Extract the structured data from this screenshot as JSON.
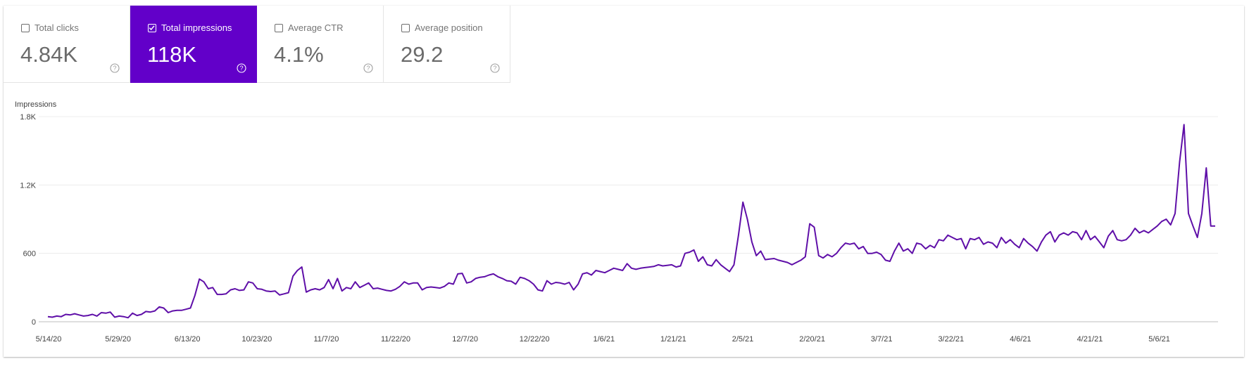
{
  "metrics": [
    {
      "label": "Total clicks",
      "value": "4.84K",
      "checked": false,
      "icon": "help-circle-icon"
    },
    {
      "label": "Total impressions",
      "value": "118K",
      "checked": true,
      "icon": "help-circle-icon"
    },
    {
      "label": "Average CTR",
      "value": "4.1%",
      "checked": false,
      "icon": "help-circle-icon"
    },
    {
      "label": "Average position",
      "value": "29.2",
      "checked": false,
      "icon": "help-circle-icon"
    }
  ],
  "colors": {
    "accent": "#6200c9",
    "line": "#5f0fa8",
    "grid": "#ececec"
  },
  "chart_data": {
    "type": "line",
    "title": "",
    "ylabel": "Impressions",
    "xlabel": "",
    "ylim": [
      0,
      1800
    ],
    "yticks": [
      0,
      600,
      1200,
      1800
    ],
    "ytick_labels": [
      "0",
      "600",
      "1.2K",
      "1.8K"
    ],
    "xtick_labels": [
      "5/14/20",
      "5/29/20",
      "6/13/20",
      "10/23/20",
      "11/7/20",
      "11/22/20",
      "12/7/20",
      "12/22/20",
      "1/6/21",
      "1/21/21",
      "2/5/21",
      "2/20/21",
      "3/7/21",
      "3/22/21",
      "4/6/21",
      "4/21/21",
      "5/6/21"
    ],
    "grid": true,
    "legend": "none",
    "series": [
      {
        "name": "",
        "values": [
          45,
          40,
          50,
          45,
          65,
          60,
          70,
          60,
          50,
          55,
          65,
          50,
          80,
          75,
          85,
          40,
          50,
          45,
          35,
          75,
          55,
          65,
          90,
          85,
          95,
          130,
          120,
          80,
          95,
          100,
          100,
          110,
          120,
          230,
          375,
          350,
          290,
          300,
          240,
          240,
          245,
          280,
          290,
          275,
          280,
          350,
          340,
          290,
          285,
          270,
          265,
          270,
          235,
          245,
          255,
          400,
          450,
          480,
          260,
          280,
          290,
          280,
          300,
          370,
          290,
          380,
          270,
          300,
          290,
          350,
          300,
          320,
          340,
          290,
          295,
          285,
          275,
          270,
          285,
          310,
          350,
          330,
          340,
          340,
          280,
          300,
          305,
          300,
          295,
          310,
          340,
          330,
          420,
          425,
          340,
          350,
          380,
          390,
          395,
          410,
          420,
          395,
          380,
          360,
          355,
          330,
          390,
          380,
          360,
          330,
          280,
          270,
          360,
          330,
          345,
          340,
          330,
          345,
          280,
          330,
          420,
          430,
          410,
          450,
          440,
          430,
          450,
          470,
          460,
          450,
          510,
          470,
          460,
          470,
          475,
          480,
          485,
          500,
          490,
          495,
          500,
          480,
          490,
          600,
          610,
          630,
          530,
          570,
          500,
          490,
          545,
          500,
          470,
          440,
          500,
          760,
          1050,
          900,
          700,
          580,
          620,
          545,
          550,
          555,
          540,
          530,
          520,
          500,
          520,
          540,
          570,
          860,
          830,
          580,
          560,
          590,
          570,
          600,
          650,
          690,
          680,
          690,
          640,
          660,
          600,
          600,
          610,
          590,
          540,
          530,
          620,
          690,
          620,
          640,
          600,
          690,
          680,
          640,
          670,
          650,
          720,
          710,
          760,
          740,
          720,
          730,
          640,
          730,
          720,
          740,
          680,
          700,
          690,
          650,
          740,
          690,
          720,
          680,
          650,
          730,
          690,
          660,
          620,
          700,
          760,
          790,
          700,
          760,
          780,
          760,
          790,
          780,
          720,
          800,
          720,
          750,
          700,
          650,
          750,
          800,
          720,
          710,
          720,
          760,
          820,
          780,
          800,
          780,
          810,
          840,
          880,
          900,
          850,
          950,
          1400,
          1730,
          950,
          840,
          740,
          950,
          1350,
          840,
          840
        ]
      }
    ]
  }
}
